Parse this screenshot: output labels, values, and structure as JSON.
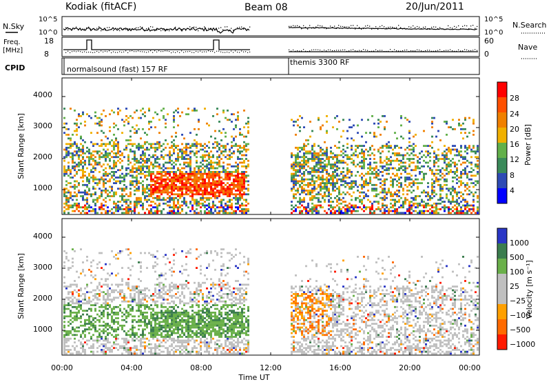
{
  "header": {
    "station": "Kodiak (fitACF)",
    "beam": "Beam 08",
    "date": "20/Jun/2011"
  },
  "noise_panel": {
    "left_label": "N.Sky",
    "right_label": "N.Search",
    "left_ticks": [
      "10^5",
      "10^0"
    ],
    "right_ticks": [
      "10^5",
      "10^0"
    ]
  },
  "freq_panel": {
    "left_label_line1": "Freq.",
    "left_label_line2": "[MHz]",
    "left_ticks": [
      "18",
      "8"
    ],
    "right_label": "Nave",
    "right_ticks": [
      "60",
      "0"
    ]
  },
  "cpid_panel": {
    "label": "CPID",
    "segments": [
      {
        "name": "normalsound (fast) 157 RF",
        "start_hour": 0.0,
        "end_hour": 10.75
      },
      {
        "name": "themis 3300 RF",
        "start_hour": 13.1,
        "end_hour": 24.0
      }
    ]
  },
  "x_axis": {
    "label": "Time UT",
    "ticks": [
      "00:00",
      "04:00",
      "08:00",
      "12:00",
      "16:00",
      "20:00",
      "00:00"
    ]
  },
  "colors": {
    "power_scale": [
      "#0000ff",
      "#2e4bb5",
      "#3a8a5a",
      "#62b04a",
      "#f0b000",
      "#f08000",
      "#ff5000",
      "#ff0000"
    ],
    "velocity_scale": [
      "#2a36c6",
      "#3b7d4e",
      "#6ab04a",
      "#c0c0c0",
      "#c0c0c0",
      "#ffa000",
      "#ff6a00",
      "#ff1a00"
    ]
  },
  "chart_data": [
    {
      "type": "heatmap",
      "quantity": "power",
      "ylabel": "Slant Range [km]",
      "yticks": [
        "1000",
        "2000",
        "3000",
        "4000"
      ],
      "ylim": [
        200,
        4600
      ],
      "xlim_hours": [
        0,
        24
      ],
      "colorbar": {
        "label": "Power [dB]",
        "ticks": [
          "4",
          "8",
          "12",
          "16",
          "20",
          "24",
          "28"
        ],
        "range": [
          0,
          32
        ]
      },
      "data_gaps_hours": [
        [
          10.75,
          13.1
        ]
      ]
    },
    {
      "type": "heatmap",
      "quantity": "velocity",
      "ylabel": "Slant Range [km]",
      "yticks": [
        "1000",
        "2000",
        "3000",
        "4000"
      ],
      "ylim": [
        200,
        4600
      ],
      "xlim_hours": [
        0,
        24
      ],
      "colorbar": {
        "label": "Velocity  [m s⁻¹]",
        "ticks": [
          "1000",
          "500",
          "100",
          "25",
          "−25",
          "−100",
          "−500",
          "−1000"
        ]
      },
      "data_gaps_hours": [
        [
          10.75,
          13.1
        ]
      ]
    }
  ]
}
